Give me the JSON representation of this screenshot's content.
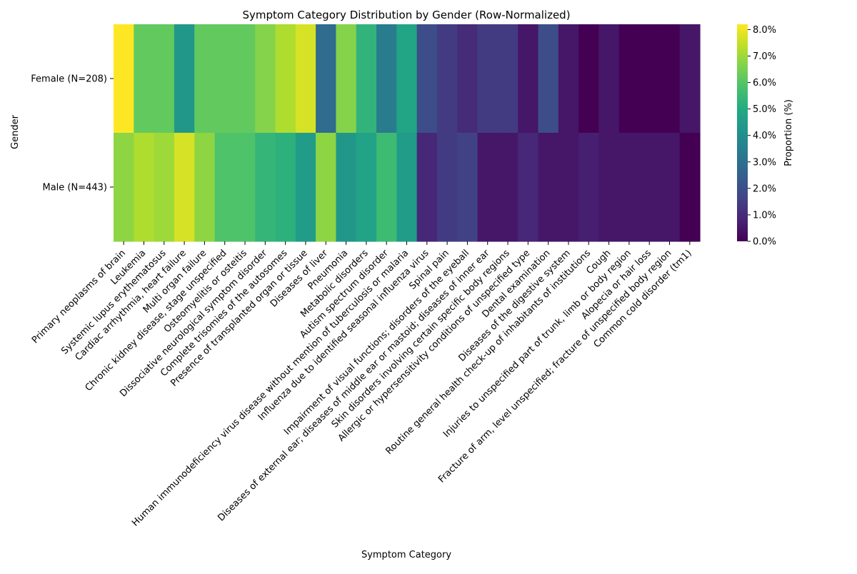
{
  "chart_data": {
    "type": "heatmap",
    "title": "Symptom Category Distribution by Gender (Row-Normalized)",
    "xlabel": "Symptom Category",
    "ylabel": "Gender",
    "colorbar_label": "Proportion (%)",
    "colormap": "viridis",
    "vmin": 0.0,
    "vmax": 8.2,
    "colorbar_ticks": [
      "0.0%",
      "1.0%",
      "2.0%",
      "3.0%",
      "4.0%",
      "5.0%",
      "6.0%",
      "7.0%",
      "8.0%"
    ],
    "rows": [
      "Female (N=208)",
      "Male (N=443)"
    ],
    "categories": [
      "Primary neoplasms of brain",
      "Leukemia",
      "Systemic lupus erythematosus",
      "Cardiac arrhythmia, heart failure",
      "Multi organ failure",
      "Chronic kidney disease, stage unspecified",
      "Osteomyelitis or osteitis",
      "Dissociative neurological symptom disorder",
      "Complete trisomies of the autosomes",
      "Presence of transplanted organ or tissue",
      "Diseases of liver",
      "Pneumonia",
      "Metabolic disorders",
      "Autism spectrum disorder",
      "Human immunodeficiency virus disease without mention of tuberculosis or malaria",
      "Influenza due to identified seasonal influenza virus",
      "Spinal pain",
      "Impairment of visual functions; disorders of the eyeball",
      "Diseases of external ear; diseases of middle ear or mastoid; diseases of inner ear",
      "Skin disorders involving certain specific body regions",
      "Allergic or hypersensitivity conditions of unspecified type",
      "Dental examination",
      "Diseases of the digestive system",
      "Routine general health check-up of inhabitants of institutions",
      "Cough",
      "Injuries to unspecified part of trunk, limb or body region",
      "Alopecia or hair loss",
      "Fracture of arm, level unspecified;  fracture of unspecified body region",
      "Common cold disorder (tm1)"
    ],
    "values": [
      [
        8.2,
        6.2,
        6.2,
        4.3,
        6.2,
        6.2,
        6.2,
        6.7,
        7.2,
        7.7,
        2.9,
        6.7,
        5.3,
        3.4,
        4.8,
        1.9,
        1.4,
        1.0,
        1.4,
        1.4,
        0.5,
        1.9,
        0.5,
        0.0,
        0.5,
        0.0,
        0.0,
        0.0,
        0.5
      ],
      [
        6.8,
        7.2,
        7.0,
        7.7,
        6.8,
        5.9,
        5.9,
        5.4,
        5.2,
        4.5,
        6.8,
        4.3,
        4.7,
        5.6,
        4.5,
        0.9,
        1.4,
        1.6,
        0.5,
        0.5,
        0.9,
        0.5,
        0.5,
        0.7,
        0.5,
        0.5,
        0.5,
        0.5,
        0.0
      ]
    ]
  }
}
